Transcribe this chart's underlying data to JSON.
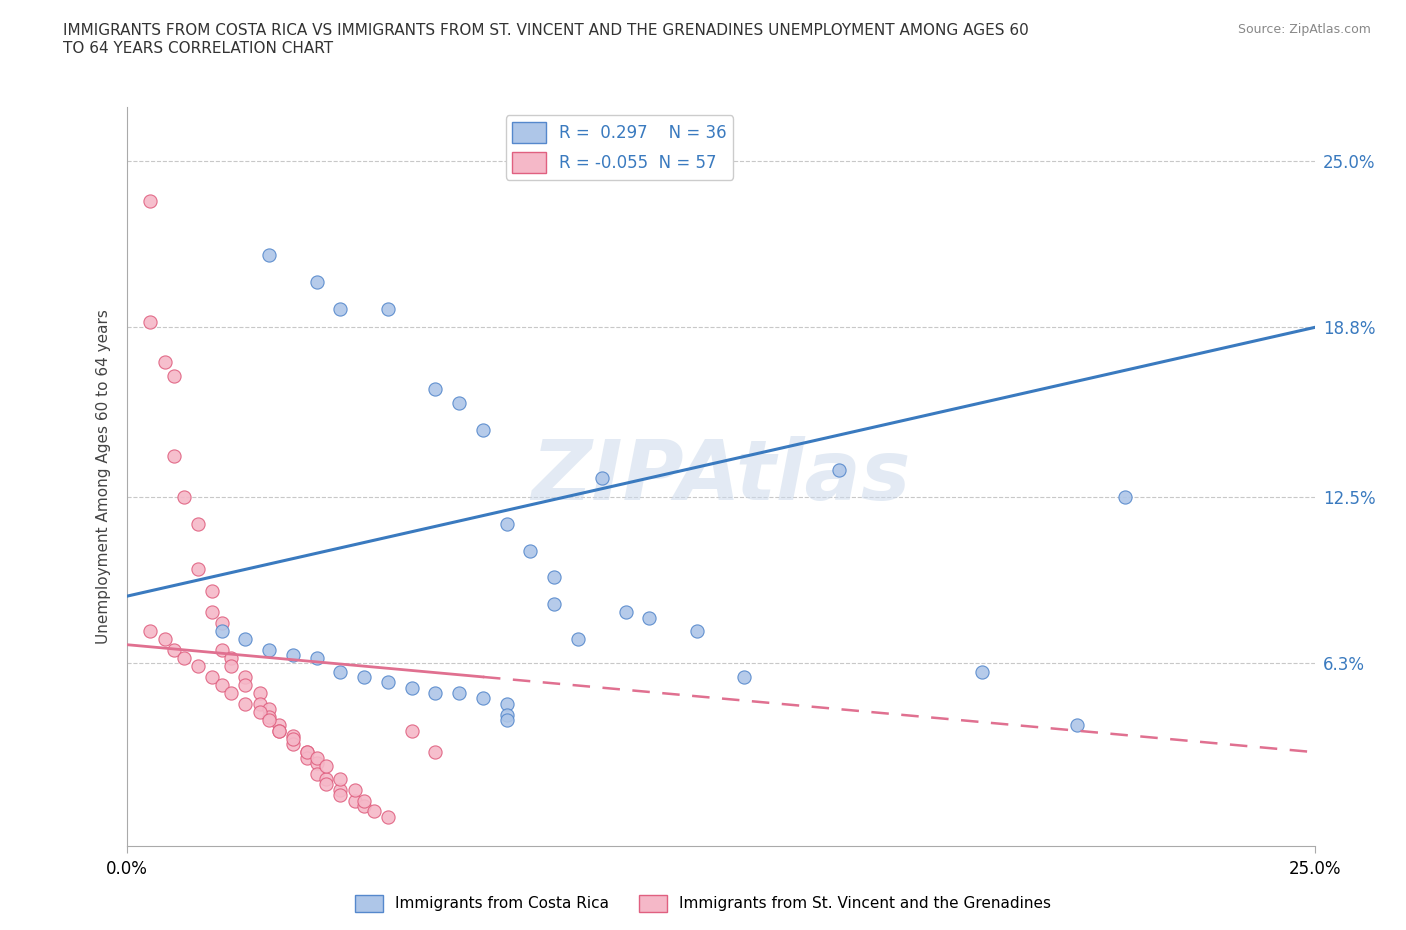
{
  "title": "IMMIGRANTS FROM COSTA RICA VS IMMIGRANTS FROM ST. VINCENT AND THE GRENADINES UNEMPLOYMENT AMONG AGES 60\nTO 64 YEARS CORRELATION CHART",
  "source": "Source: ZipAtlas.com",
  "ylabel": "Unemployment Among Ages 60 to 64 years",
  "xlim": [
    0.0,
    0.25
  ],
  "ylim": [
    -0.005,
    0.27
  ],
  "ytick_values": [
    0.063,
    0.125,
    0.188,
    0.25
  ],
  "ytick_right_labels": [
    "6.3%",
    "12.5%",
    "18.8%",
    "25.0%"
  ],
  "watermark": "ZIPAtlas",
  "series1_color": "#aec6e8",
  "series1_edge": "#5588cc",
  "series2_color": "#f5b8c8",
  "series2_edge": "#e06080",
  "line1_color": "#3a7abf",
  "line2_color": "#e07090",
  "legend1_label": "Immigrants from Costa Rica",
  "legend2_label": "Immigrants from St. Vincent and the Grenadines",
  "R1": 0.297,
  "N1": 36,
  "R2": -0.055,
  "N2": 57,
  "line1_x0": 0.0,
  "line1_y0": 0.088,
  "line1_x1": 0.25,
  "line1_y1": 0.188,
  "line2_x0": 0.0,
  "line2_y0": 0.07,
  "line2_x1": 0.25,
  "line2_y1": 0.03,
  "line2_solid_x1": 0.075,
  "series1_x": [
    0.03,
    0.04,
    0.045,
    0.055,
    0.065,
    0.07,
    0.075,
    0.08,
    0.085,
    0.09,
    0.09,
    0.095,
    0.1,
    0.105,
    0.11,
    0.12,
    0.13,
    0.15,
    0.18,
    0.2,
    0.21,
    0.02,
    0.025,
    0.03,
    0.035,
    0.04,
    0.045,
    0.05,
    0.055,
    0.06,
    0.065,
    0.07,
    0.075,
    0.08,
    0.08,
    0.08
  ],
  "series1_y": [
    0.215,
    0.205,
    0.195,
    0.195,
    0.165,
    0.16,
    0.15,
    0.115,
    0.105,
    0.085,
    0.095,
    0.072,
    0.132,
    0.082,
    0.08,
    0.075,
    0.058,
    0.135,
    0.06,
    0.04,
    0.125,
    0.075,
    0.072,
    0.068,
    0.066,
    0.065,
    0.06,
    0.058,
    0.056,
    0.054,
    0.052,
    0.052,
    0.05,
    0.048,
    0.044,
    0.042
  ],
  "series2_x": [
    0.005,
    0.005,
    0.008,
    0.01,
    0.01,
    0.012,
    0.015,
    0.015,
    0.018,
    0.018,
    0.02,
    0.02,
    0.022,
    0.022,
    0.025,
    0.025,
    0.028,
    0.028,
    0.03,
    0.03,
    0.032,
    0.032,
    0.035,
    0.035,
    0.038,
    0.038,
    0.04,
    0.04,
    0.042,
    0.042,
    0.045,
    0.045,
    0.048,
    0.05,
    0.052,
    0.055,
    0.005,
    0.008,
    0.01,
    0.012,
    0.015,
    0.018,
    0.02,
    0.022,
    0.025,
    0.028,
    0.03,
    0.032,
    0.035,
    0.038,
    0.04,
    0.042,
    0.045,
    0.048,
    0.05,
    0.06,
    0.065
  ],
  "series2_y": [
    0.235,
    0.19,
    0.175,
    0.17,
    0.14,
    0.125,
    0.115,
    0.098,
    0.09,
    0.082,
    0.078,
    0.068,
    0.065,
    0.062,
    0.058,
    0.055,
    0.052,
    0.048,
    0.046,
    0.043,
    0.04,
    0.038,
    0.036,
    0.033,
    0.03,
    0.028,
    0.026,
    0.022,
    0.02,
    0.018,
    0.016,
    0.014,
    0.012,
    0.01,
    0.008,
    0.006,
    0.075,
    0.072,
    0.068,
    0.065,
    0.062,
    0.058,
    0.055,
    0.052,
    0.048,
    0.045,
    0.042,
    0.038,
    0.035,
    0.03,
    0.028,
    0.025,
    0.02,
    0.016,
    0.012,
    0.038,
    0.03
  ]
}
